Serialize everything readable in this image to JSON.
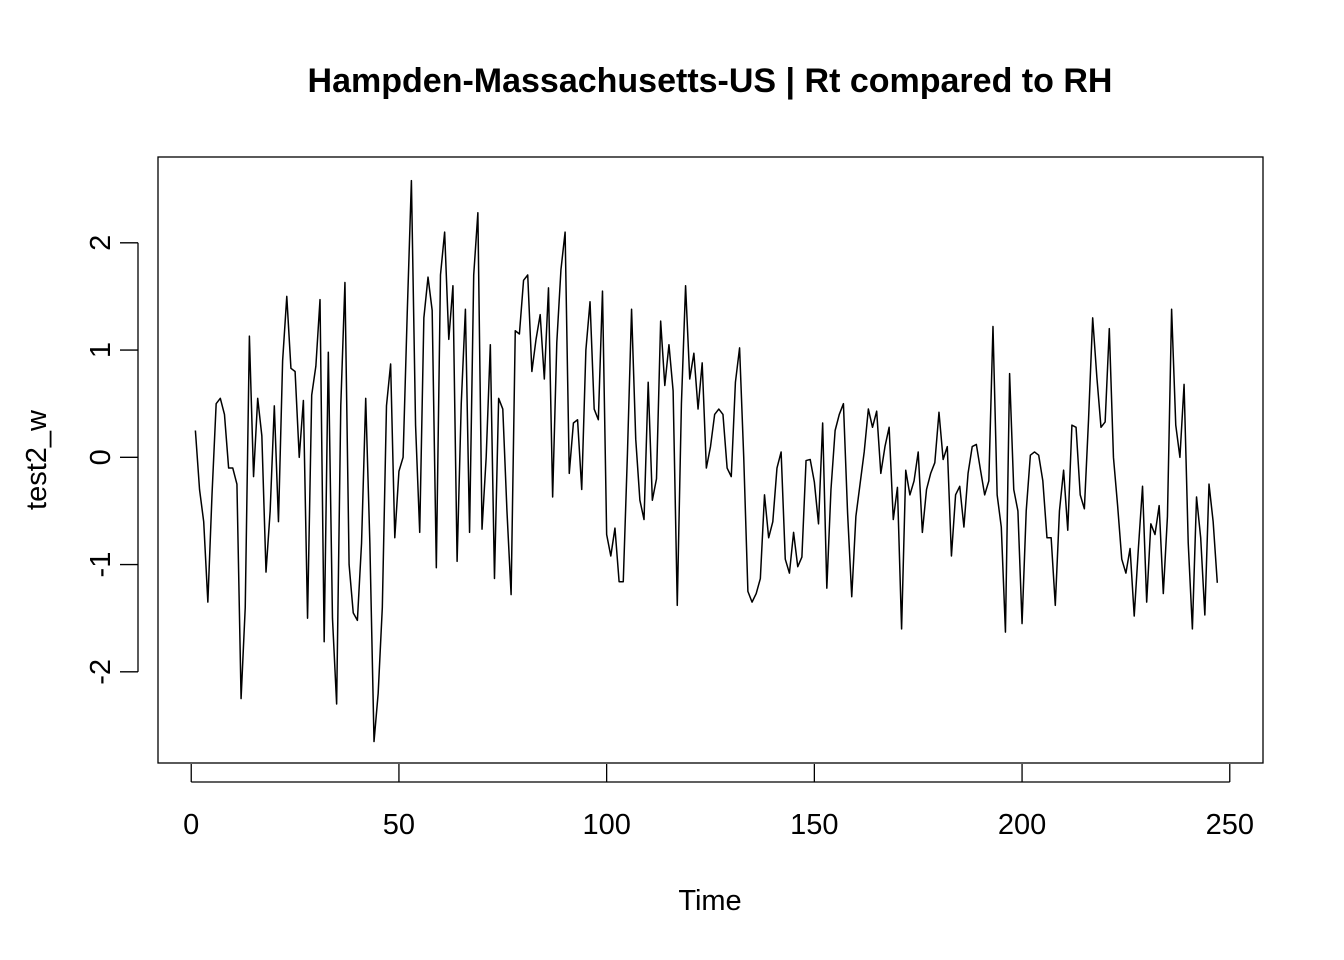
{
  "chart_data": {
    "type": "line",
    "title": "Hampden-Massachusetts-US | Rt compared to RH",
    "xlabel": "Time",
    "ylabel": "test2_w",
    "xlim": [
      -8,
      258
    ],
    "ylim": [
      -2.85,
      2.8
    ],
    "x_ticks": [
      0,
      50,
      100,
      150,
      200,
      250
    ],
    "y_ticks": [
      -2,
      -1,
      0,
      1,
      2
    ],
    "x_tick_labels": [
      "0",
      "50",
      "100",
      "150",
      "200",
      "250"
    ],
    "y_tick_labels": [
      "-2",
      "-1",
      "0",
      "1",
      "2"
    ],
    "grid": false,
    "line_color": "#000000",
    "x_start": 1,
    "values": [
      0.25,
      -0.3,
      -0.6,
      -1.35,
      -0.35,
      0.5,
      0.55,
      0.4,
      -0.1,
      -0.1,
      -0.25,
      -2.25,
      -1.4,
      1.13,
      -0.18,
      0.55,
      0.2,
      -1.07,
      -0.5,
      0.48,
      -0.6,
      0.9,
      1.5,
      0.83,
      0.8,
      0.0,
      0.53,
      -1.5,
      0.58,
      0.85,
      1.47,
      -1.72,
      0.98,
      -1.5,
      -2.3,
      0.48,
      1.63,
      -1.0,
      -1.45,
      -1.52,
      -0.8,
      0.55,
      -0.8,
      -2.65,
      -2.2,
      -1.4,
      0.48,
      0.87,
      -0.75,
      -0.13,
      0.0,
      1.35,
      2.58,
      0.3,
      -0.7,
      1.3,
      1.68,
      1.37,
      -1.03,
      1.7,
      2.1,
      1.1,
      1.6,
      -0.97,
      0.5,
      1.38,
      -0.7,
      1.7,
      2.28,
      -0.67,
      0.0,
      1.05,
      -1.13,
      0.55,
      0.45,
      -0.5,
      -1.28,
      1.18,
      1.15,
      1.65,
      1.7,
      0.8,
      1.1,
      1.33,
      0.73,
      1.58,
      -0.37,
      1.07,
      1.75,
      2.1,
      -0.15,
      0.32,
      0.35,
      -0.3,
      1.0,
      1.45,
      0.45,
      0.35,
      1.55,
      -0.72,
      -0.92,
      -0.66,
      -1.16,
      -1.16,
      0.03,
      1.38,
      0.17,
      -0.4,
      -0.58,
      0.7,
      -0.4,
      -0.2,
      1.27,
      0.67,
      1.05,
      0.62,
      -1.38,
      0.5,
      1.6,
      0.73,
      0.97,
      0.45,
      0.88,
      -0.1,
      0.1,
      0.4,
      0.45,
      0.4,
      -0.1,
      -0.18,
      0.7,
      1.02,
      0.0,
      -1.25,
      -1.35,
      -1.27,
      -1.13,
      -0.35,
      -0.75,
      -0.6,
      -0.1,
      0.05,
      -0.95,
      -1.08,
      -0.7,
      -1.02,
      -0.93,
      -0.03,
      -0.02,
      -0.23,
      -0.62,
      0.32,
      -1.22,
      -0.3,
      0.25,
      0.4,
      0.5,
      -0.52,
      -1.3,
      -0.55,
      -0.25,
      0.05,
      0.45,
      0.28,
      0.43,
      -0.15,
      0.1,
      0.28,
      -0.58,
      -0.28,
      -1.6,
      -0.12,
      -0.35,
      -0.22,
      0.05,
      -0.7,
      -0.3,
      -0.15,
      -0.05,
      0.42,
      -0.02,
      0.1,
      -0.92,
      -0.35,
      -0.27,
      -0.65,
      -0.15,
      0.1,
      0.12,
      -0.12,
      -0.35,
      -0.22,
      1.22,
      -0.35,
      -0.65,
      -1.63,
      0.78,
      -0.3,
      -0.5,
      -1.55,
      -0.5,
      0.02,
      0.05,
      0.02,
      -0.22,
      -0.75,
      -0.75,
      -1.38,
      -0.5,
      -0.12,
      -0.68,
      0.3,
      0.28,
      -0.35,
      -0.48,
      0.35,
      1.3,
      0.75,
      0.28,
      0.33,
      1.2,
      0.0,
      -0.45,
      -0.95,
      -1.08,
      -0.85,
      -1.48,
      -0.85,
      -0.27,
      -1.35,
      -0.62,
      -0.72,
      -0.45,
      -1.27,
      -0.55,
      1.38,
      0.3,
      0.0,
      0.68,
      -0.8,
      -1.6,
      -0.37,
      -0.75,
      -1.47,
      -0.25,
      -0.6,
      -1.17
    ]
  }
}
